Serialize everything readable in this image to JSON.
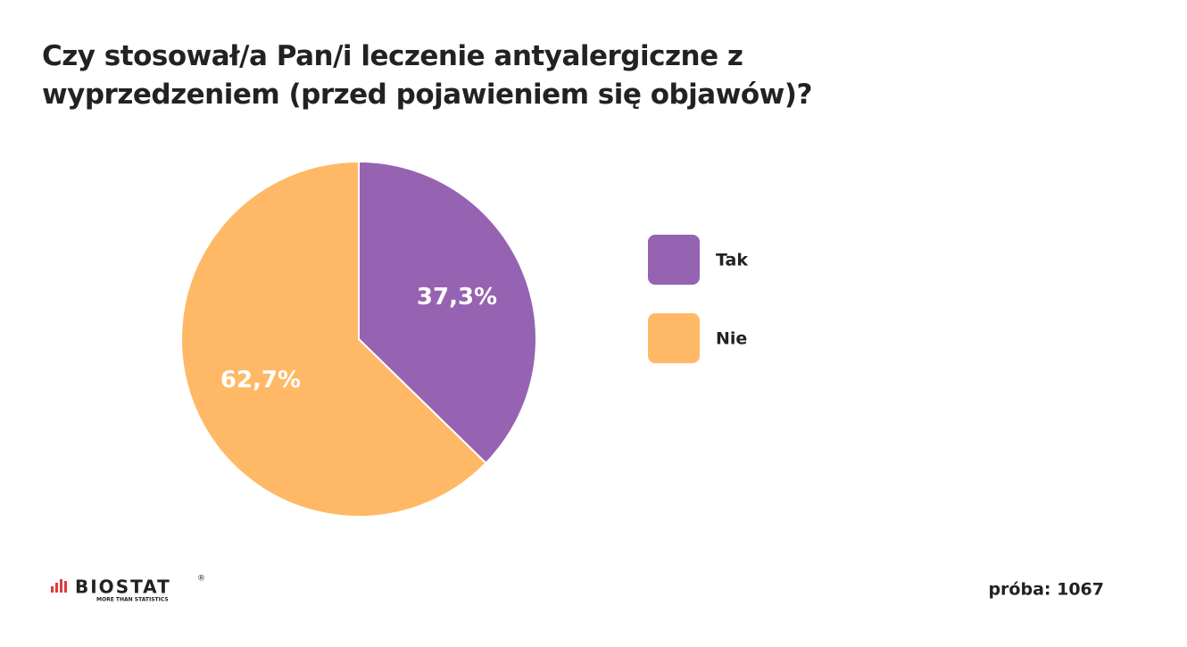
{
  "chart_data": {
    "type": "pie",
    "title": "Czy stosował/a Pan/i leczenie antyalergiczne z wyprzedzeniem (przed pojawieniem się objawów)?",
    "categories": [
      "Tak",
      "Nie"
    ],
    "values": [
      37.3,
      62.7
    ],
    "value_labels": [
      "37,3%",
      "62,7%"
    ],
    "colors": [
      "#9662b2",
      "#ffb966"
    ],
    "legend": "right"
  },
  "footer": {
    "sample": "próba: 1067",
    "logo": "BIOSTAT",
    "logo_mark": "®",
    "tagline": "MORE THAN STATISTICS"
  }
}
